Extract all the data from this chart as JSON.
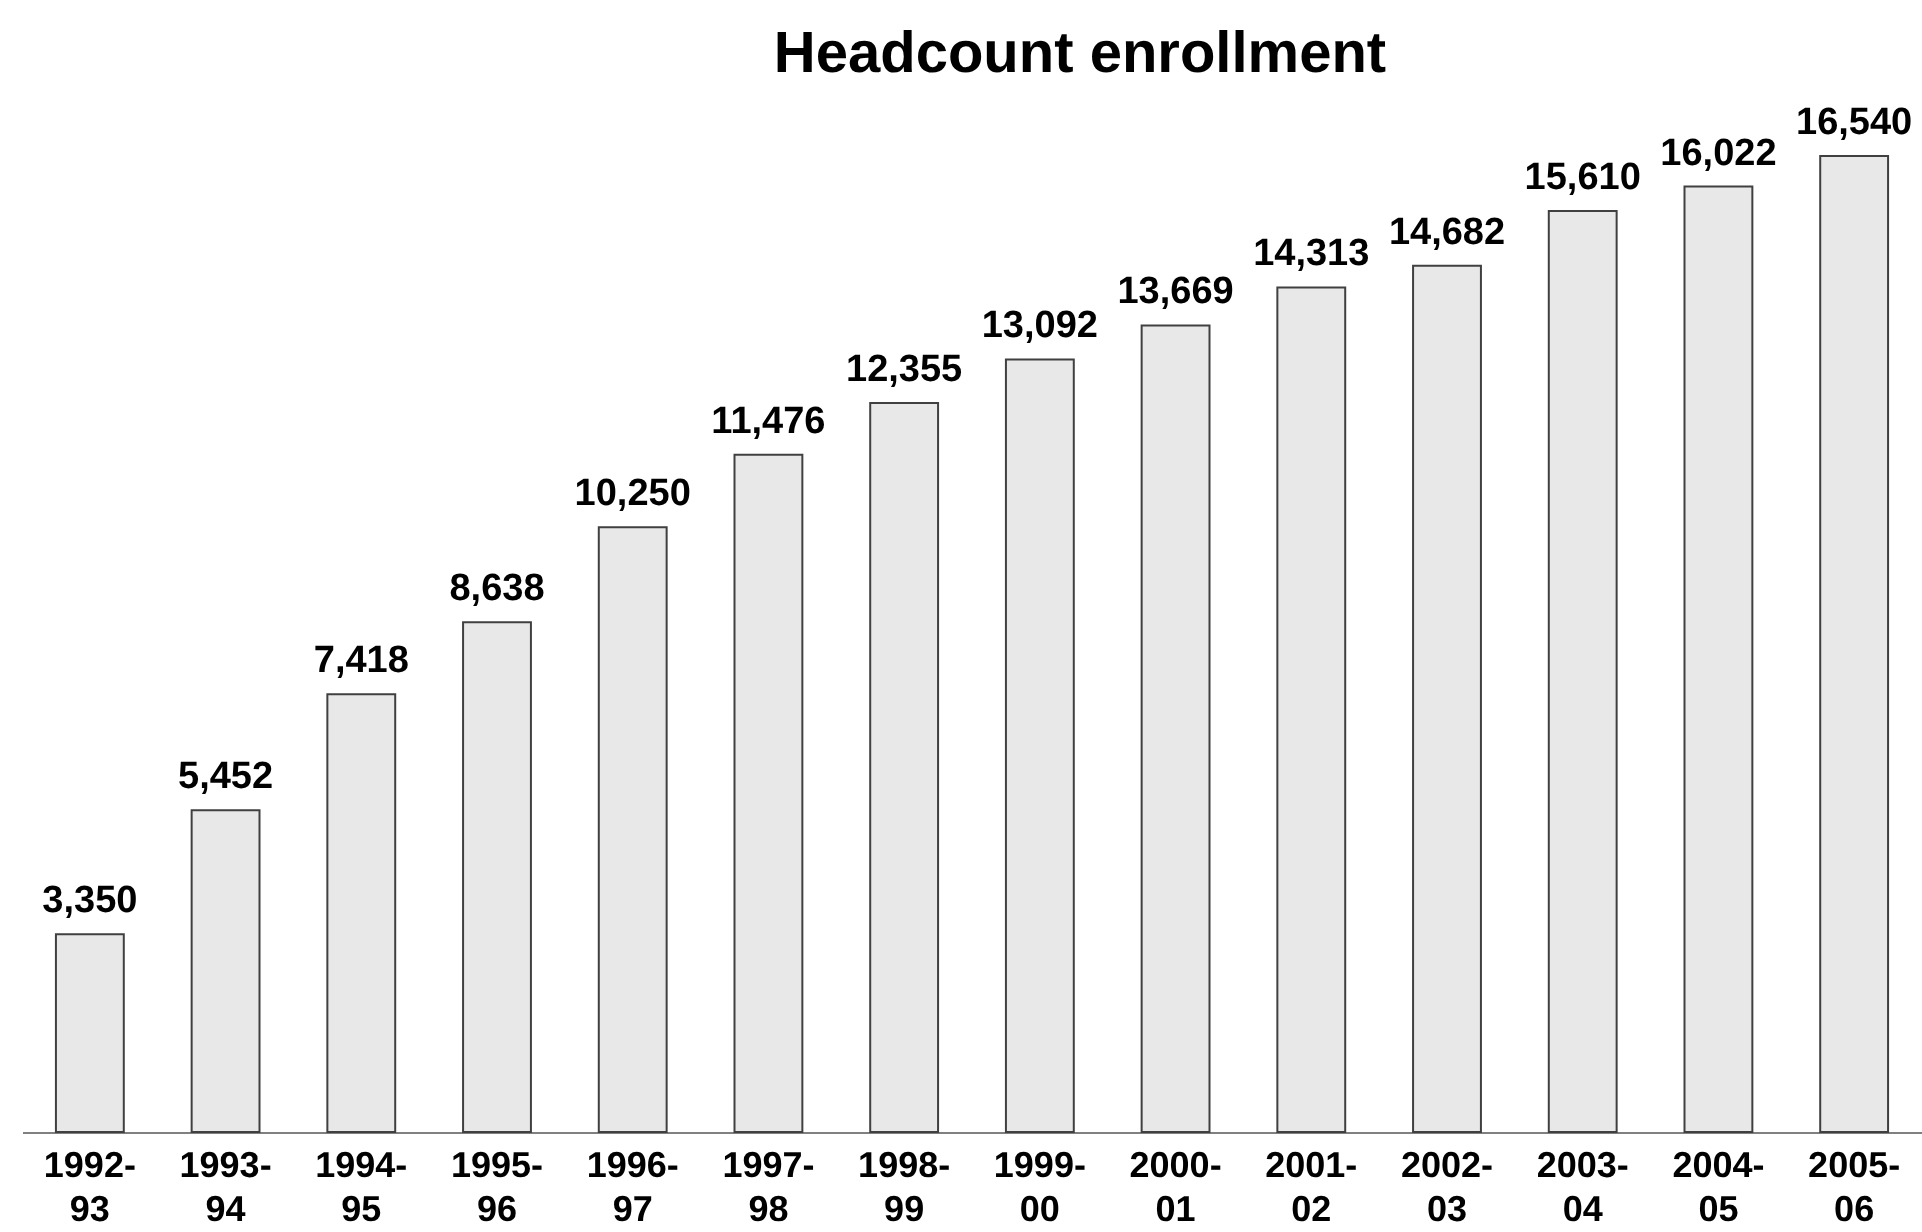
{
  "chart_data": {
    "type": "bar",
    "title": "Headcount enrollment",
    "categories": [
      "1992-93",
      "1993-94",
      "1994-95",
      "1995-96",
      "1996-97",
      "1997-98",
      "1998-99",
      "1999-00",
      "2000-01",
      "2001-02",
      "2002-03",
      "2003-04",
      "2004-05",
      "2005-06"
    ],
    "values": [
      3350,
      5452,
      7418,
      8638,
      10250,
      11476,
      12355,
      13092,
      13669,
      14313,
      14682,
      15610,
      16022,
      16540
    ],
    "value_labels": [
      "3,350",
      "5,452",
      "7,418",
      "8,638",
      "10,250",
      "11,476",
      "12,355",
      "13,092",
      "13,669",
      "14,313",
      "14,682",
      "15,610",
      "16,022",
      "16,540"
    ],
    "color": "#e8e8e8"
  }
}
